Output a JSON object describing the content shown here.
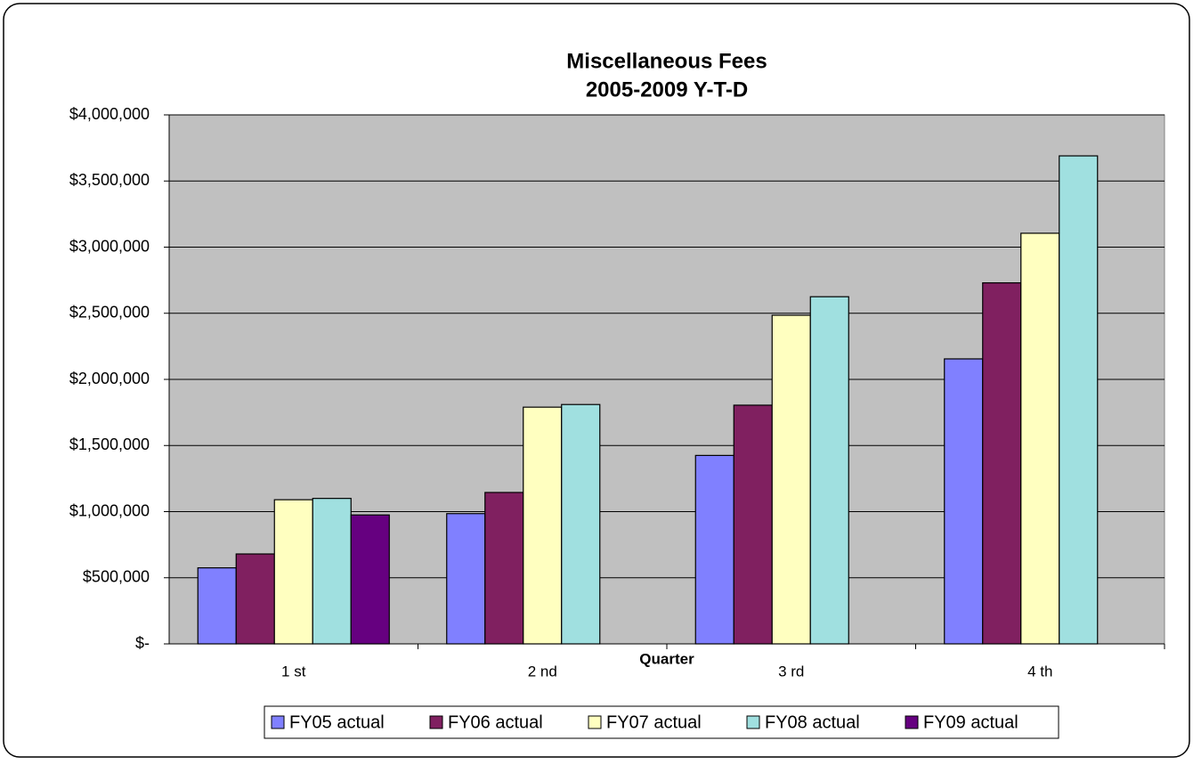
{
  "chart_data": {
    "type": "bar",
    "title": "Miscellaneous Fees",
    "subtitle": "2005-2009 Y-T-D",
    "x_label": "Quarter",
    "categories": [
      "1 st",
      "2 nd",
      "3 rd",
      "4 th"
    ],
    "series": [
      {
        "name": "FY05 actual",
        "color": "#8080ff",
        "values": [
          575000,
          985000,
          1425000,
          2155000
        ]
      },
      {
        "name": "FY06 actual",
        "color": "#802060",
        "values": [
          680000,
          1145000,
          1805000,
          2730000
        ]
      },
      {
        "name": "FY07 actual",
        "color": "#ffffc0",
        "values": [
          1090000,
          1790000,
          2485000,
          3105000
        ]
      },
      {
        "name": "FY08 actual",
        "color": "#a0e0e0",
        "values": [
          1100000,
          1810000,
          2625000,
          3690000
        ]
      },
      {
        "name": "FY09 actual",
        "color": "#660080",
        "values": [
          975000,
          null,
          null,
          null
        ]
      }
    ],
    "ylim": [
      0,
      4000000
    ],
    "yticks": [
      {
        "value": 0,
        "label": "$-"
      },
      {
        "value": 500000,
        "label": "$500,000"
      },
      {
        "value": 1000000,
        "label": "$1,000,000"
      },
      {
        "value": 1500000,
        "label": "$1,500,000"
      },
      {
        "value": 2000000,
        "label": "$2,000,000"
      },
      {
        "value": 2500000,
        "label": "$2,500,000"
      },
      {
        "value": 3000000,
        "label": "$3,000,000"
      },
      {
        "value": 3500000,
        "label": "$3,500,000"
      },
      {
        "value": 4000000,
        "label": "$4,000,000"
      }
    ],
    "grid": true,
    "plot_background": "#c0c0c0",
    "legend": "bottom"
  }
}
